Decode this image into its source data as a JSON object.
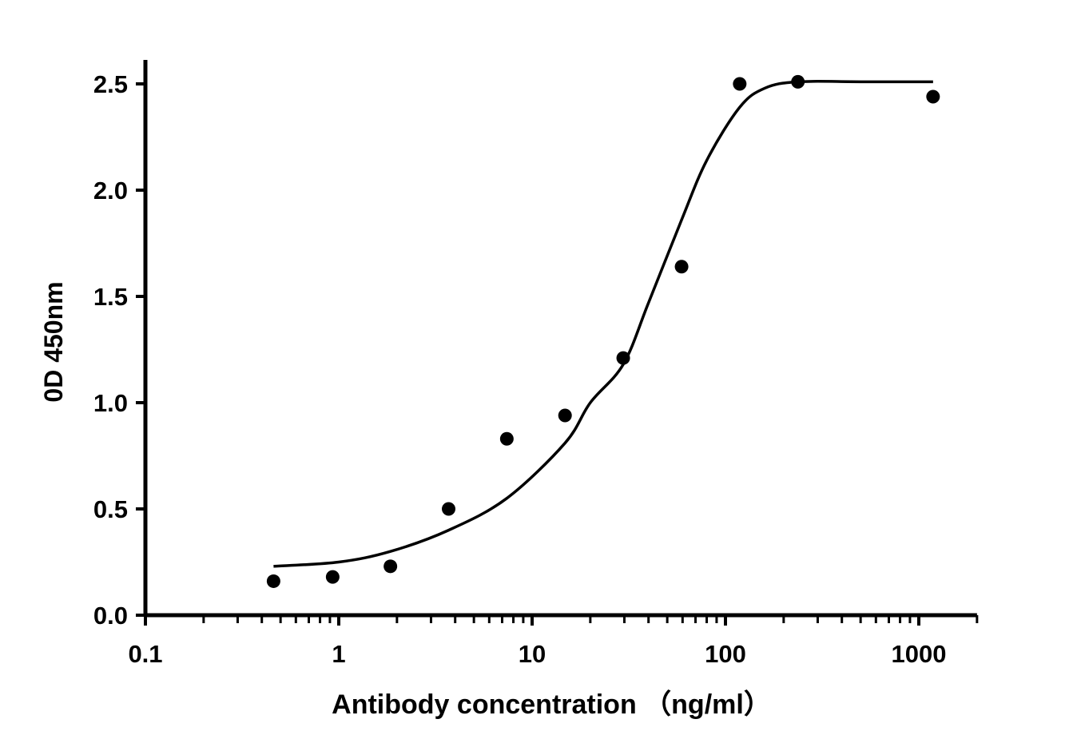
{
  "chart_data": {
    "type": "scatter",
    "title": "",
    "xlabel": "Antibody concentration （ng/ml）",
    "ylabel": "0D 450nm",
    "xscale": "log",
    "xlim": [
      0.1,
      2000
    ],
    "ylim": [
      0,
      2.6
    ],
    "grid": false,
    "legend": "none",
    "x_ticks": [
      0.1,
      1,
      10,
      100,
      1000
    ],
    "x_tick_labels": [
      "0.1",
      "1",
      "10",
      "100",
      "1000"
    ],
    "y_ticks": [
      0,
      0.5,
      1,
      1.5,
      2,
      2.5
    ],
    "y_tick_labels": [
      "0.0",
      "0.5",
      "1.0",
      "1.5",
      "2.0",
      "2.5"
    ],
    "series": [
      {
        "type": "scatter",
        "color": "#000000",
        "x": [
          0.46,
          0.93,
          1.85,
          3.7,
          7.4,
          14.8,
          29.6,
          59.3,
          118.5,
          237,
          1185
        ],
        "y": [
          0.16,
          0.18,
          0.23,
          0.5,
          0.83,
          0.94,
          1.21,
          1.64,
          2.5,
          2.51,
          2.44
        ]
      },
      {
        "type": "line",
        "color": "#000000",
        "x": [
          0.46,
          1,
          1.85,
          3.7,
          7.4,
          14.8,
          20,
          29.6,
          40,
          59.3,
          80,
          118.5,
          160,
          237,
          500,
          1185
        ],
        "y": [
          0.23,
          0.25,
          0.3,
          0.4,
          0.55,
          0.81,
          1.0,
          1.18,
          1.47,
          1.86,
          2.14,
          2.39,
          2.48,
          2.51,
          2.51,
          2.51
        ]
      }
    ]
  }
}
